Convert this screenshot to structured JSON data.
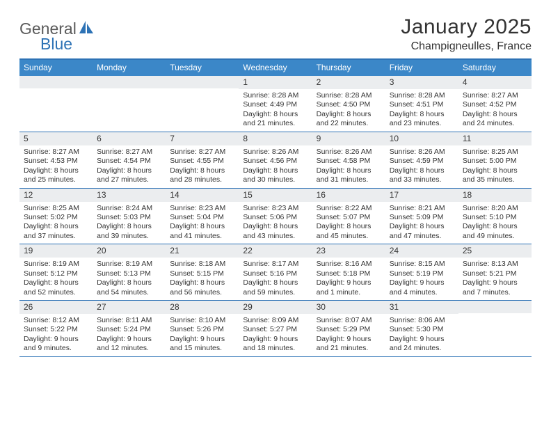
{
  "logo": {
    "text1": "General",
    "text2": "Blue"
  },
  "title": "January 2025",
  "location": "Champigneulles, France",
  "day_headers": [
    "Sunday",
    "Monday",
    "Tuesday",
    "Wednesday",
    "Thursday",
    "Friday",
    "Saturday"
  ],
  "colors": {
    "accent": "#2d72b5",
    "header_bg": "#3b87c8",
    "daynum_bg": "#ebedef",
    "text": "#333333",
    "logo_gray": "#5a5a5a"
  },
  "weeks": [
    [
      {
        "blank": true
      },
      {
        "blank": true
      },
      {
        "blank": true
      },
      {
        "day": "1",
        "sunrise": "Sunrise: 8:28 AM",
        "sunset": "Sunset: 4:49 PM",
        "dl1": "Daylight: 8 hours",
        "dl2": "and 21 minutes."
      },
      {
        "day": "2",
        "sunrise": "Sunrise: 8:28 AM",
        "sunset": "Sunset: 4:50 PM",
        "dl1": "Daylight: 8 hours",
        "dl2": "and 22 minutes."
      },
      {
        "day": "3",
        "sunrise": "Sunrise: 8:28 AM",
        "sunset": "Sunset: 4:51 PM",
        "dl1": "Daylight: 8 hours",
        "dl2": "and 23 minutes."
      },
      {
        "day": "4",
        "sunrise": "Sunrise: 8:27 AM",
        "sunset": "Sunset: 4:52 PM",
        "dl1": "Daylight: 8 hours",
        "dl2": "and 24 minutes."
      }
    ],
    [
      {
        "day": "5",
        "sunrise": "Sunrise: 8:27 AM",
        "sunset": "Sunset: 4:53 PM",
        "dl1": "Daylight: 8 hours",
        "dl2": "and 25 minutes."
      },
      {
        "day": "6",
        "sunrise": "Sunrise: 8:27 AM",
        "sunset": "Sunset: 4:54 PM",
        "dl1": "Daylight: 8 hours",
        "dl2": "and 27 minutes."
      },
      {
        "day": "7",
        "sunrise": "Sunrise: 8:27 AM",
        "sunset": "Sunset: 4:55 PM",
        "dl1": "Daylight: 8 hours",
        "dl2": "and 28 minutes."
      },
      {
        "day": "8",
        "sunrise": "Sunrise: 8:26 AM",
        "sunset": "Sunset: 4:56 PM",
        "dl1": "Daylight: 8 hours",
        "dl2": "and 30 minutes."
      },
      {
        "day": "9",
        "sunrise": "Sunrise: 8:26 AM",
        "sunset": "Sunset: 4:58 PM",
        "dl1": "Daylight: 8 hours",
        "dl2": "and 31 minutes."
      },
      {
        "day": "10",
        "sunrise": "Sunrise: 8:26 AM",
        "sunset": "Sunset: 4:59 PM",
        "dl1": "Daylight: 8 hours",
        "dl2": "and 33 minutes."
      },
      {
        "day": "11",
        "sunrise": "Sunrise: 8:25 AM",
        "sunset": "Sunset: 5:00 PM",
        "dl1": "Daylight: 8 hours",
        "dl2": "and 35 minutes."
      }
    ],
    [
      {
        "day": "12",
        "sunrise": "Sunrise: 8:25 AM",
        "sunset": "Sunset: 5:02 PM",
        "dl1": "Daylight: 8 hours",
        "dl2": "and 37 minutes."
      },
      {
        "day": "13",
        "sunrise": "Sunrise: 8:24 AM",
        "sunset": "Sunset: 5:03 PM",
        "dl1": "Daylight: 8 hours",
        "dl2": "and 39 minutes."
      },
      {
        "day": "14",
        "sunrise": "Sunrise: 8:23 AM",
        "sunset": "Sunset: 5:04 PM",
        "dl1": "Daylight: 8 hours",
        "dl2": "and 41 minutes."
      },
      {
        "day": "15",
        "sunrise": "Sunrise: 8:23 AM",
        "sunset": "Sunset: 5:06 PM",
        "dl1": "Daylight: 8 hours",
        "dl2": "and 43 minutes."
      },
      {
        "day": "16",
        "sunrise": "Sunrise: 8:22 AM",
        "sunset": "Sunset: 5:07 PM",
        "dl1": "Daylight: 8 hours",
        "dl2": "and 45 minutes."
      },
      {
        "day": "17",
        "sunrise": "Sunrise: 8:21 AM",
        "sunset": "Sunset: 5:09 PM",
        "dl1": "Daylight: 8 hours",
        "dl2": "and 47 minutes."
      },
      {
        "day": "18",
        "sunrise": "Sunrise: 8:20 AM",
        "sunset": "Sunset: 5:10 PM",
        "dl1": "Daylight: 8 hours",
        "dl2": "and 49 minutes."
      }
    ],
    [
      {
        "day": "19",
        "sunrise": "Sunrise: 8:19 AM",
        "sunset": "Sunset: 5:12 PM",
        "dl1": "Daylight: 8 hours",
        "dl2": "and 52 minutes."
      },
      {
        "day": "20",
        "sunrise": "Sunrise: 8:19 AM",
        "sunset": "Sunset: 5:13 PM",
        "dl1": "Daylight: 8 hours",
        "dl2": "and 54 minutes."
      },
      {
        "day": "21",
        "sunrise": "Sunrise: 8:18 AM",
        "sunset": "Sunset: 5:15 PM",
        "dl1": "Daylight: 8 hours",
        "dl2": "and 56 minutes."
      },
      {
        "day": "22",
        "sunrise": "Sunrise: 8:17 AM",
        "sunset": "Sunset: 5:16 PM",
        "dl1": "Daylight: 8 hours",
        "dl2": "and 59 minutes."
      },
      {
        "day": "23",
        "sunrise": "Sunrise: 8:16 AM",
        "sunset": "Sunset: 5:18 PM",
        "dl1": "Daylight: 9 hours",
        "dl2": "and 1 minute."
      },
      {
        "day": "24",
        "sunrise": "Sunrise: 8:15 AM",
        "sunset": "Sunset: 5:19 PM",
        "dl1": "Daylight: 9 hours",
        "dl2": "and 4 minutes."
      },
      {
        "day": "25",
        "sunrise": "Sunrise: 8:13 AM",
        "sunset": "Sunset: 5:21 PM",
        "dl1": "Daylight: 9 hours",
        "dl2": "and 7 minutes."
      }
    ],
    [
      {
        "day": "26",
        "sunrise": "Sunrise: 8:12 AM",
        "sunset": "Sunset: 5:22 PM",
        "dl1": "Daylight: 9 hours",
        "dl2": "and 9 minutes."
      },
      {
        "day": "27",
        "sunrise": "Sunrise: 8:11 AM",
        "sunset": "Sunset: 5:24 PM",
        "dl1": "Daylight: 9 hours",
        "dl2": "and 12 minutes."
      },
      {
        "day": "28",
        "sunrise": "Sunrise: 8:10 AM",
        "sunset": "Sunset: 5:26 PM",
        "dl1": "Daylight: 9 hours",
        "dl2": "and 15 minutes."
      },
      {
        "day": "29",
        "sunrise": "Sunrise: 8:09 AM",
        "sunset": "Sunset: 5:27 PM",
        "dl1": "Daylight: 9 hours",
        "dl2": "and 18 minutes."
      },
      {
        "day": "30",
        "sunrise": "Sunrise: 8:07 AM",
        "sunset": "Sunset: 5:29 PM",
        "dl1": "Daylight: 9 hours",
        "dl2": "and 21 minutes."
      },
      {
        "day": "31",
        "sunrise": "Sunrise: 8:06 AM",
        "sunset": "Sunset: 5:30 PM",
        "dl1": "Daylight: 9 hours",
        "dl2": "and 24 minutes."
      },
      {
        "blank": true
      }
    ]
  ]
}
